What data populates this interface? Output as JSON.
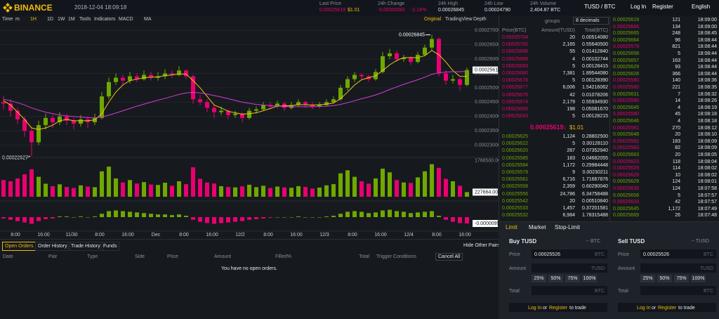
{
  "header": {
    "logo": "BINANCE",
    "datetime": "2018-12-04 18:09:18",
    "stats": [
      {
        "label": "Last Price",
        "value": "0.00025619",
        "extra": "$1.01"
      },
      {
        "label": "24h Change",
        "value": "-0.00000581",
        "extra": "-2.14%"
      },
      {
        "label": "24h High",
        "value": "0.00026845"
      },
      {
        "label": "24h Low",
        "value": "0.00024790"
      },
      {
        "label": "24h Volume",
        "value": "2,404.87 BTC"
      }
    ],
    "pair": "TUSD / BTC",
    "login": "Log In",
    "register": "Register",
    "language": "English"
  },
  "toolbar": {
    "left": [
      "Time",
      "m",
      "1H",
      "1D",
      "1W",
      "1M",
      "Tools",
      "Indicators",
      "MACD",
      "MA"
    ],
    "right": [
      "Original",
      "TradingView",
      "Depth"
    ]
  },
  "chart_data": {
    "type": "candlestick",
    "ylim": [
      0.000226,
      0.0002725
    ],
    "yticks": [
      {
        "value": 0.00027,
        "label": "0.00027000"
      },
      {
        "value": 0.000265,
        "label": "0.00026500"
      },
      {
        "value": 0.00026,
        "label": "0.00026000"
      },
      {
        "value": 0.000255,
        "label": "0.00025500"
      },
      {
        "value": 0.00025,
        "label": "0.00025000"
      },
      {
        "value": 0.000245,
        "label": "0.00024500"
      },
      {
        "value": 0.00024,
        "label": "0.00024000"
      },
      {
        "value": 0.000235,
        "label": "0.00023500"
      },
      {
        "value": 0.00023,
        "label": "0.00023000"
      }
    ],
    "up_color": "#70a800",
    "down_color": "#ea0070",
    "grid": true,
    "high_label": "0.00026845",
    "low_label": "0.00022627",
    "last_label": "0.00025619",
    "xlabels": [
      "8:00",
      "16:00",
      "11/30",
      "8:00",
      "16:00",
      "Dec",
      "8:00",
      "16:00",
      "12/2",
      "8:00",
      "16:00",
      "12/3",
      "8:00",
      "16:00",
      "12/4",
      "8:00",
      "16:00"
    ],
    "ohlc": [
      [
        0.000245,
        0.0002472,
        0.0002425,
        0.0002445
      ],
      [
        0.0002445,
        0.000246,
        0.00024,
        0.000242
      ],
      [
        0.000242,
        0.000243,
        0.0002375,
        0.000239
      ],
      [
        0.000239,
        0.00024,
        0.000233,
        0.000235
      ],
      [
        0.000235,
        0.0002365,
        0.00022627,
        0.000231
      ],
      [
        0.000231,
        0.0002385,
        0.00023,
        0.000237
      ],
      [
        0.000237,
        0.000241,
        0.0002355,
        0.0002395
      ],
      [
        0.0002395,
        0.0002405,
        0.000236,
        0.000238
      ],
      [
        0.000238,
        0.0002415,
        0.000237,
        0.00024
      ],
      [
        0.00024,
        0.000241,
        0.000237,
        0.0002385
      ],
      [
        0.0002385,
        0.0002395,
        0.0002355,
        0.0002375
      ],
      [
        0.0002375,
        0.0002405,
        0.0002365,
        0.000239
      ],
      [
        0.000239,
        0.00024,
        0.000236,
        0.000238
      ],
      [
        0.000238,
        0.000241,
        0.000237,
        0.0002395
      ],
      [
        0.0002395,
        0.0002485,
        0.000239,
        0.000247
      ],
      [
        0.000247,
        0.0002535,
        0.000246,
        0.000252
      ],
      [
        0.000252,
        0.000255,
        0.000251,
        0.0002535
      ],
      [
        0.0002535,
        0.0002545,
        0.000251,
        0.0002525
      ],
      [
        0.0002525,
        0.0002555,
        0.0002515,
        0.000254
      ],
      [
        0.000254,
        0.000255,
        0.000252,
        0.000253
      ],
      [
        0.000253,
        0.000256,
        0.0002525,
        0.0002545
      ],
      [
        0.0002545,
        0.0002555,
        0.0002525,
        0.0002535
      ],
      [
        0.0002535,
        0.0002555,
        0.0002525,
        0.000254
      ],
      [
        0.000254,
        0.0002565,
        0.000253,
        0.000255
      ],
      [
        0.000255,
        0.000256,
        0.0002535,
        0.0002545
      ],
      [
        0.0002545,
        0.0002575,
        0.000254,
        0.000256
      ],
      [
        0.000256,
        0.0002565,
        0.000253,
        0.000254
      ],
      [
        0.000254,
        0.0002545,
        0.0002445,
        0.000246
      ],
      [
        0.000246,
        0.0002475,
        0.000244,
        0.000245
      ],
      [
        0.000245,
        0.000246,
        0.0002415,
        0.000243
      ],
      [
        0.000243,
        0.000244,
        0.0002395,
        0.0002415
      ],
      [
        0.0002415,
        0.0002435,
        0.0002405,
        0.000242
      ],
      [
        0.000242,
        0.0002425,
        0.000239,
        0.0002405
      ],
      [
        0.0002405,
        0.000242,
        0.0002395,
        0.000241
      ],
      [
        0.000241,
        0.0002415,
        0.000238,
        0.0002395
      ],
      [
        0.0002395,
        0.000243,
        0.000239,
        0.000242
      ],
      [
        0.000242,
        0.0002435,
        0.000241,
        0.0002425
      ],
      [
        0.0002425,
        0.000245,
        0.000242,
        0.000244
      ],
      [
        0.000244,
        0.000245,
        0.0002425,
        0.0002435
      ],
      [
        0.0002435,
        0.0002455,
        0.000243,
        0.0002445
      ],
      [
        0.0002445,
        0.000245,
        0.000242,
        0.000243
      ],
      [
        0.000243,
        0.000245,
        0.0002425,
        0.000244
      ],
      [
        0.000244,
        0.000246,
        0.0002435,
        0.000245
      ],
      [
        0.000245,
        0.0002455,
        0.000243,
        0.000244
      ],
      [
        0.000244,
        0.000245,
        0.0002425,
        0.0002435
      ],
      [
        0.0002435,
        0.000245,
        0.000243,
        0.000244
      ],
      [
        0.000244,
        0.000246,
        0.0002435,
        0.000245
      ],
      [
        0.000245,
        0.000247,
        0.0002445,
        0.000246
      ],
      [
        0.000246,
        0.000251,
        0.0002455,
        0.00025
      ],
      [
        0.00025,
        0.000254,
        0.000249,
        0.000253
      ],
      [
        0.000253,
        0.0002555,
        0.000252,
        0.0002545
      ],
      [
        0.0002545,
        0.000255,
        0.000253,
        0.000254
      ],
      [
        0.000254,
        0.0002545,
        0.000252,
        0.000253
      ],
      [
        0.000253,
        0.0002565,
        0.0002525,
        0.0002555
      ],
      [
        0.0002555,
        0.0002625,
        0.000255,
        0.000261
      ],
      [
        0.000261,
        0.0002635,
        0.00026,
        0.000262
      ],
      [
        0.000262,
        0.000263,
        0.000259,
        0.00026
      ],
      [
        0.00026,
        0.0002615,
        0.000259,
        0.0002605
      ],
      [
        0.0002605,
        0.000261,
        0.000258,
        0.000259
      ],
      [
        0.000259,
        0.0002625,
        0.0002585,
        0.0002615
      ],
      [
        0.0002615,
        0.000265,
        0.000261,
        0.000264
      ],
      [
        0.000264,
        0.00026845,
        0.000263,
        0.000267
      ],
      [
        0.000267,
        0.0002675,
        0.000254,
        0.000255
      ],
      [
        0.000255,
        0.000256,
        0.000251,
        0.0002525
      ],
      [
        0.0002525,
        0.0002545,
        0.0002515,
        0.000253
      ],
      [
        0.000253,
        0.0002535,
        0.000249,
        0.000251
      ],
      [
        0.000251,
        0.000257,
        0.0002505,
        0.00025619
      ]
    ],
    "ma": [
      {
        "color": "#f0c419",
        "values": [
          0.0002455,
          0.000244,
          0.0002415,
          0.000239,
          0.000236,
          0.0002355,
          0.000236,
          0.000237,
          0.0002385,
          0.000239,
          0.0002385,
          0.0002385,
          0.0002385,
          0.0002388,
          0.000241,
          0.000245,
          0.0002485,
          0.000251,
          0.0002525,
          0.000253,
          0.0002535,
          0.0002537,
          0.0002538,
          0.0002542,
          0.0002545,
          0.0002548,
          0.0002548,
          0.0002525,
          0.00025,
          0.000247,
          0.000244,
          0.000243,
          0.0002418,
          0.0002413,
          0.0002408,
          0.000241,
          0.0002413,
          0.000242,
          0.0002428,
          0.0002436,
          0.0002437,
          0.0002438,
          0.0002441,
          0.0002441,
          0.000244,
          0.0002441,
          0.0002443,
          0.0002447,
          0.0002462,
          0.0002485,
          0.000251,
          0.0002528,
          0.0002535,
          0.0002542,
          0.000256,
          0.000258,
          0.0002595,
          0.0002605,
          0.0002605,
          0.0002605,
          0.0002612,
          0.000263,
          0.0002615,
          0.000259,
          0.000256,
          0.000254,
          0.000254
        ]
      },
      {
        "color": "#d63ad6",
        "values": [
          0.000246,
          0.0002455,
          0.0002448,
          0.000244,
          0.000243,
          0.0002422,
          0.0002415,
          0.000241,
          0.0002405,
          0.0002402,
          0.00024,
          0.0002398,
          0.0002396,
          0.0002395,
          0.0002398,
          0.0002405,
          0.0002412,
          0.000242,
          0.0002428,
          0.0002436,
          0.0002443,
          0.000245,
          0.0002457,
          0.0002463,
          0.000247,
          0.0002477,
          0.0002482,
          0.0002484,
          0.0002482,
          0.0002478,
          0.0002473,
          0.0002468,
          0.0002462,
          0.0002456,
          0.000245,
          0.0002446,
          0.0002442,
          0.000244,
          0.0002438,
          0.0002436,
          0.0002435,
          0.0002434,
          0.0002434,
          0.0002434,
          0.0002434,
          0.0002435,
          0.0002436,
          0.0002438,
          0.0002442,
          0.0002448,
          0.0002455,
          0.0002462,
          0.0002468,
          0.0002475,
          0.0002484,
          0.0002494,
          0.0002503,
          0.0002512,
          0.000252,
          0.0002528,
          0.0002537,
          0.0002547,
          0.0002552,
          0.0002555,
          0.0002556,
          0.0002556,
          0.0002557
        ]
      }
    ],
    "volume": {
      "ylim": [
        0,
        1900000
      ],
      "yticks": [
        {
          "value": 1768500,
          "label": "1768500.00"
        }
      ],
      "current_label": "227664.000",
      "values": [
        820000,
        760000,
        900000,
        1100000,
        1350000,
        980000,
        640000,
        520000,
        610000,
        480000,
        430000,
        560000,
        500000,
        470000,
        1250000,
        1480000,
        900000,
        700000,
        820000,
        650000,
        720000,
        600000,
        580000,
        690000,
        540000,
        760000,
        620000,
        1450000,
        880000,
        700000,
        650000,
        520000,
        480000,
        460000,
        510000,
        590000,
        470000,
        540000,
        430000,
        500000,
        460000,
        440000,
        520000,
        480000,
        400000,
        450000,
        560000,
        620000,
        1150000,
        1300000,
        980000,
        760000,
        640000,
        900000,
        1380000,
        1200000,
        820000,
        700000,
        680000,
        950000,
        1250000,
        1600000,
        1420000,
        880000,
        760000,
        540000,
        227664
      ]
    },
    "macd": {
      "ylim": [
        -2e-05,
        2e-05
      ],
      "current_label": "-0.0000095",
      "values": [
        -2e-06,
        -4e-06,
        -6e-06,
        -8e-06,
        -1e-05,
        -6e-06,
        -3e-06,
        -2e-06,
        1e-06,
        1e-06,
        0,
        1e-06,
        0,
        1e-06,
        5e-06,
        9e-06,
        1e-05,
        9e-06,
        8e-06,
        7e-06,
        6e-06,
        5e-06,
        4e-06,
        4e-06,
        3e-06,
        4e-06,
        2e-06,
        -4e-06,
        -7e-06,
        -9e-06,
        -1e-05,
        -9e-06,
        -8e-06,
        -7e-06,
        -6e-06,
        -4e-06,
        -3e-06,
        -2e-06,
        -1e-06,
        0,
        0,
        0,
        1e-06,
        0,
        0,
        0,
        1e-06,
        2e-06,
        5e-06,
        8e-06,
        9e-06,
        8e-06,
        6e-06,
        7e-06,
        1e-05,
        1.1e-05,
        9e-06,
        8e-06,
        6e-06,
        7e-06,
        8e-06,
        9e-06,
        2e-06,
        -4e-06,
        -7e-06,
        -9e-06,
        -9.5e-06
      ]
    }
  },
  "orderbook": {
    "groups": "groups",
    "decimals": "8 decimals",
    "columns": [
      "Price(BTC)",
      "Amount(TUSD)",
      "Total(BTC)"
    ],
    "asks": [
      [
        "0.00025704",
        "20",
        "0.00514080"
      ],
      [
        "0.00025700",
        "2,165",
        "0.55640500"
      ],
      [
        "0.00025698",
        "55",
        "0.01412840"
      ],
      [
        "0.00025688",
        "4",
        "0.00102744"
      ],
      [
        "0.00025683",
        "5",
        "0.00128415"
      ],
      [
        "0.00025680",
        "7,381",
        "1.89544080"
      ],
      [
        "0.00025678",
        "5",
        "0.00128390"
      ],
      [
        "0.00025677",
        "6,006",
        "1.54216062"
      ],
      [
        "0.00025676",
        "42",
        "0.01078206"
      ],
      [
        "0.00025674",
        "2,179",
        "0.55934930"
      ],
      [
        "0.00025665",
        "198",
        "0.05081670"
      ],
      [
        "0.00025643",
        "5",
        "0.00128215"
      ]
    ],
    "last": "0.00025619↓",
    "last_usd": "$1.01",
    "bids": [
      [
        "0.00025625",
        "1,124",
        "0.28802500"
      ],
      [
        "0.00025622",
        "5",
        "0.00128110"
      ],
      [
        "0.00025620",
        "287",
        "0.07352940"
      ],
      [
        "0.00025585",
        "183",
        "0.04682055"
      ],
      [
        "0.00025584",
        "1,172",
        "0.29984448"
      ],
      [
        "0.00025579",
        "9",
        "0.00230211"
      ],
      [
        "0.00025561",
        "6,716",
        "1.71667876"
      ],
      [
        "0.00025558",
        "2,359",
        "0.60290040"
      ],
      [
        "0.00025556",
        "24,786",
        "6.34758488"
      ],
      [
        "0.00025542",
        "20",
        "0.00510840"
      ],
      [
        "0.00025533",
        "1,457",
        "0.37201581"
      ],
      [
        "0.00025532",
        "6,984",
        "1.78315488"
      ]
    ]
  },
  "trades": {
    "rows": [
      [
        "0.00025619",
        "121",
        "18:09:00"
      ],
      [
        "0.00025666",
        "134",
        "18:09:00"
      ],
      [
        "0.00025665",
        "248",
        "18:08:45"
      ],
      [
        "0.00025664",
        "96",
        "18:08:44"
      ],
      [
        "0.00025579",
        "821",
        "18:08:44"
      ],
      [
        "0.00025658",
        "5",
        "18:08:44"
      ],
      [
        "0.00025657",
        "163",
        "18:08:44"
      ],
      [
        "0.00025629",
        "93",
        "18:08:44"
      ],
      [
        "0.00025628",
        "366",
        "18:08:44"
      ],
      [
        "0.00025580",
        "140",
        "18:08:36"
      ],
      [
        "0.00025580",
        "221",
        "18:08:35"
      ],
      [
        "0.00025631",
        "7",
        "18:08:32"
      ],
      [
        "0.00025580",
        "14",
        "18:08:26"
      ],
      [
        "0.00025645",
        "4",
        "18:08:19"
      ],
      [
        "0.00025580",
        "45",
        "18:08:18"
      ],
      [
        "0.00025646",
        "4",
        "18:08:18"
      ],
      [
        "0.00025581",
        "270",
        "18:08:12"
      ],
      [
        "0.00025648",
        "20",
        "18:08:10"
      ],
      [
        "0.00025582",
        "183",
        "18:08:09"
      ],
      [
        "0.00025583",
        "82",
        "18:08:09"
      ],
      [
        "0.00025663",
        "20",
        "18:08:05"
      ],
      [
        "0.00025623",
        "118",
        "18:08:04"
      ],
      [
        "0.00025629",
        "114",
        "18:08:02"
      ],
      [
        "0.00025629",
        "10",
        "18:08:02"
      ],
      [
        "0.00025629",
        "124",
        "18:08:01"
      ],
      [
        "0.00025635",
        "124",
        "18:07:58"
      ],
      [
        "0.00025658",
        "5",
        "18:07:57"
      ],
      [
        "0.00025633",
        "42",
        "18:07:57"
      ],
      [
        "0.00025645",
        "1,172",
        "18:07:49"
      ],
      [
        "0.00025669",
        "26",
        "18:07:48"
      ]
    ],
    "colors": [
      "#70a800",
      "#ea0070",
      "#70a800",
      "#70a800",
      "#ea0070",
      "#70a800",
      "#70a800",
      "#70a800",
      "#70a800",
      "#ea0070",
      "#ea0070",
      "#70a800",
      "#ea0070",
      "#70a800",
      "#ea0070",
      "#70a800",
      "#ea0070",
      "#70a800",
      "#ea0070",
      "#ea0070",
      "#70a800",
      "#ea0070",
      "#ea0070",
      "#ea0070",
      "#70a800",
      "#ea0070",
      "#70a800",
      "#ea0070",
      "#70a800",
      "#70a800"
    ]
  },
  "open_orders": {
    "tabs": [
      "Open Orders",
      "Order History",
      "Trade History",
      "Funds"
    ],
    "hide": "Hide Other Pairs",
    "columns": [
      "Date",
      "Pair",
      "Type",
      "Side",
      "Price",
      "Amount",
      "Filled%",
      "Total",
      "Trigger Conditions"
    ],
    "cancel_all": "Cancel All",
    "empty": "You have no open orders."
  },
  "order_form": {
    "tabs": [
      "Limit",
      "Market",
      "Stop-Limit"
    ],
    "buy": {
      "title": "Buy TUSD",
      "balance": "-- BTC",
      "price_label": "Price",
      "price": "0.00025526",
      "price_unit": "BTC",
      "amount_label": "Amount",
      "amount_unit": "TUSD",
      "percents": [
        "25%",
        "50%",
        "75%",
        "100%"
      ],
      "total_label": "Total",
      "total_unit": "BTC"
    },
    "sell": {
      "title": "Sell TUSD",
      "balance": "-- TUSD",
      "price_label": "Price",
      "price": "0.00025526",
      "price_unit": "BTC",
      "amount_label": "Amount",
      "amount_unit": "TUSD",
      "percents": [
        "25%",
        "50%",
        "75%",
        "100%"
      ],
      "total_label": "Total",
      "total_unit": "BTC"
    },
    "login": "Log In",
    "or": "or",
    "register": "Register",
    "to_trade": "to trade"
  }
}
